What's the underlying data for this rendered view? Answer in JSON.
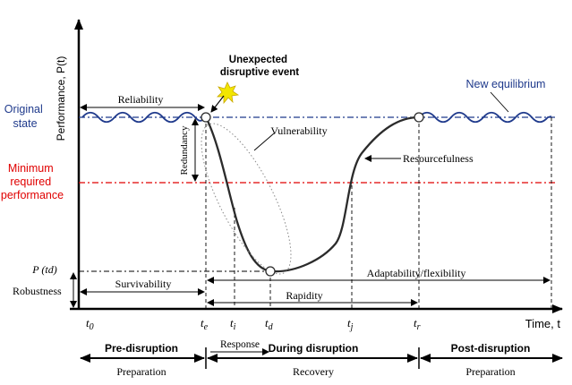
{
  "axes": {
    "y_label": "Performance, P(t)",
    "x_label": "Time, t"
  },
  "levels": {
    "original_state": [
      "Original",
      "state"
    ],
    "minimum_required": [
      "Minimum",
      "required",
      "performance"
    ],
    "p_td": "P (td)"
  },
  "annotations": {
    "event": [
      "Unexpected",
      "disruptive event"
    ],
    "new_equilibrium": "New equilibrium",
    "reliability": "Reliability",
    "vulnerability": "Vulnerability",
    "redundancy": "Redundancy",
    "resourcefulness": "Resourcefulness",
    "robustness": "Robustness",
    "survivability": "Survivability",
    "adaptability": "Adaptability/flexibility",
    "rapidity": "Rapidity"
  },
  "time_ticks": [
    {
      "main": "t",
      "sub": "0"
    },
    {
      "main": "t",
      "sub": "e"
    },
    {
      "main": "t",
      "sub": "i"
    },
    {
      "main": "t",
      "sub": "d"
    },
    {
      "main": "t",
      "sub": "j"
    },
    {
      "main": "t",
      "sub": "r"
    }
  ],
  "phases": {
    "pre": "Pre-disruption",
    "during": "During disruption",
    "post": "Post-disruption",
    "response": "Response",
    "preparation_left": "Preparation",
    "recovery": "Recovery",
    "preparation_right": "Preparation"
  },
  "colors": {
    "original_line": "#1f3a8c",
    "minimum_line": "#e00000",
    "original_text": "#1f3a8c",
    "minimum_text": "#e00000",
    "curve": "#2b2b2b",
    "star": "#f2e600"
  }
}
